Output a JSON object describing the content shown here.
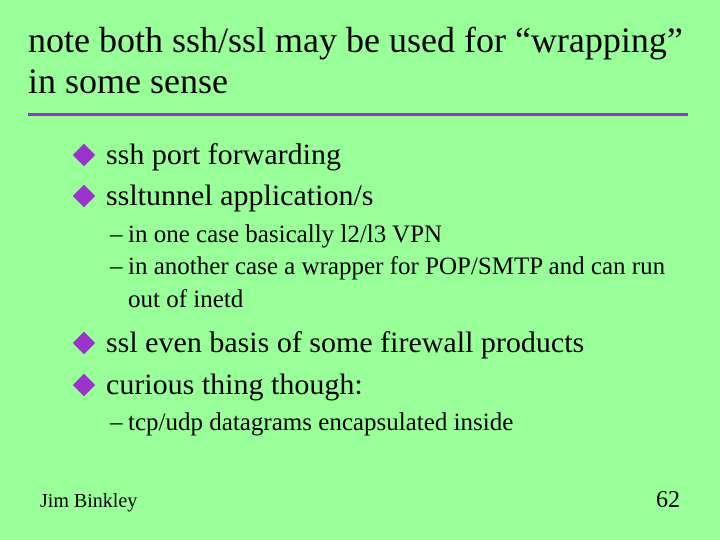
{
  "title": "note both ssh/ssl may be used for “wrapping” in some sense",
  "bullets": {
    "b0": "ssh port forwarding",
    "b1": "ssltunnel application/s",
    "b2": "ssl even basis of some firewall products",
    "b3": "curious thing though:"
  },
  "subs": {
    "s0": "in one case basically l2/l3 VPN",
    "s1": "in another case a wrapper for POP/SMTP and can run out of inetd",
    "s2": "tcp/udp datagrams encapsulated inside"
  },
  "footer": {
    "author": "Jim Binkley",
    "page": "62"
  },
  "style": {
    "background": "#99ff99",
    "accent": "#9933cc",
    "title_fontsize": 36,
    "bullet_fontsize": 30,
    "sub_fontsize": 25,
    "author_fontsize": 20,
    "page_fontsize": 24,
    "rule_height": 3,
    "diamond_size": 16,
    "font_family": "Times New Roman"
  }
}
